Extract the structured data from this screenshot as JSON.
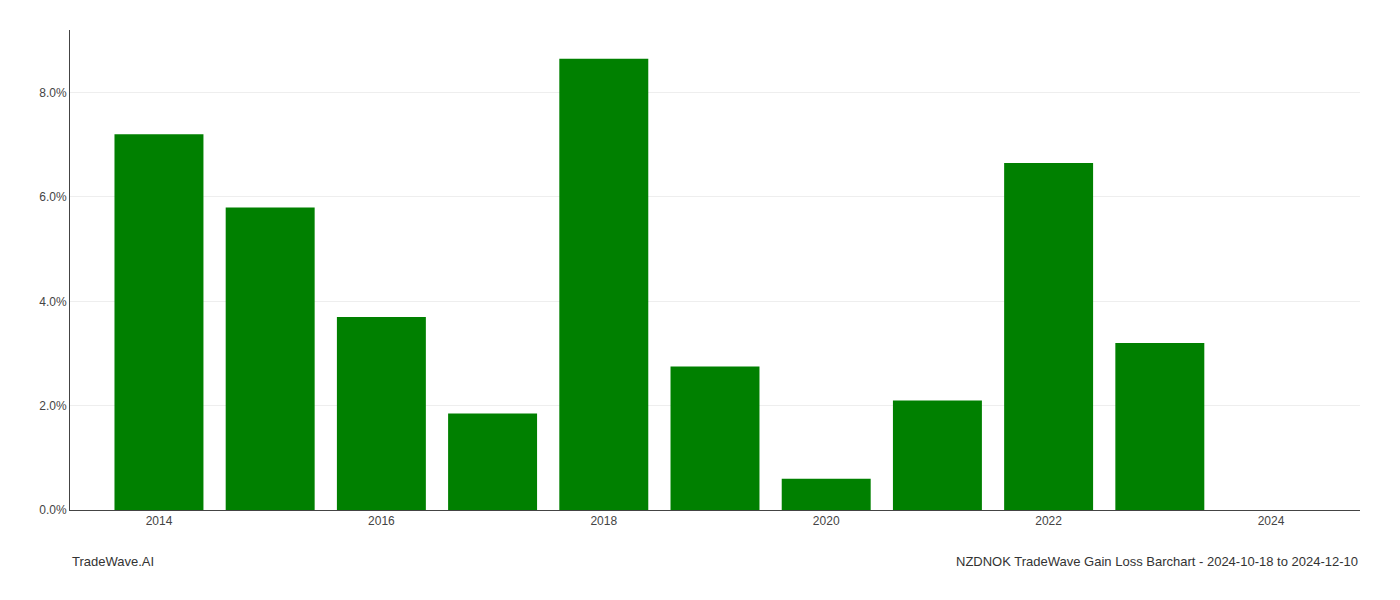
{
  "chart_data": {
    "type": "bar",
    "x": [
      2014,
      2015,
      2016,
      2017,
      2018,
      2019,
      2020,
      2021,
      2022,
      2023
    ],
    "values": [
      0.072,
      0.058,
      0.037,
      0.0185,
      0.0865,
      0.0275,
      0.006,
      0.021,
      0.0665,
      0.032
    ],
    "color": "#008000",
    "xlim": [
      2013.2,
      2024.8
    ],
    "xticks": [
      2014,
      2016,
      2018,
      2020,
      2022,
      2024
    ],
    "ylim": [
      0,
      0.092
    ],
    "yticks": [
      {
        "value": 0.0,
        "label": "0.0%"
      },
      {
        "value": 0.02,
        "label": "2.0%"
      },
      {
        "value": 0.04,
        "label": "4.0%"
      },
      {
        "value": 0.06,
        "label": "6.0%"
      },
      {
        "value": 0.08,
        "label": "8.0%"
      }
    ],
    "grid": true,
    "annotations": [
      "TradeWave.AI",
      "NZDNOK TradeWave Gain Loss Barchart - 2024-10-18 to 2024-12-10"
    ]
  }
}
